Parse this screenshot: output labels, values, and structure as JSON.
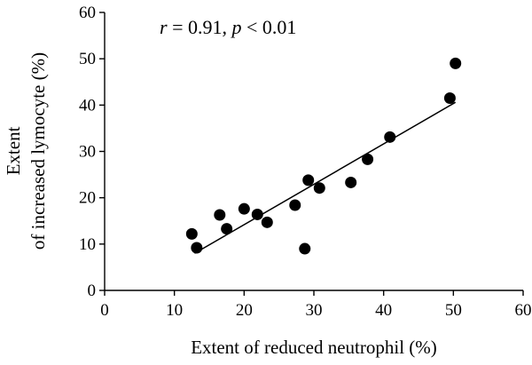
{
  "chart_data": {
    "type": "scatter",
    "title": "",
    "xlabel": "Extent of reduced neutrophil (%)",
    "ylabel_lines": [
      "Extent",
      "of increased lymocyte (%)"
    ],
    "xlim": [
      0,
      60
    ],
    "ylim": [
      0,
      60
    ],
    "xticks": [
      0,
      10,
      20,
      30,
      40,
      50,
      60
    ],
    "yticks": [
      0,
      10,
      20,
      30,
      40,
      50,
      60
    ],
    "grid": false,
    "annotation": {
      "r_symbol": "r",
      "r_value": " = 0.91, ",
      "p_symbol": "p",
      "p_value": " < 0.01"
    },
    "points": [
      {
        "x": 12.5,
        "y": 12.2
      },
      {
        "x": 13.2,
        "y": 9.2
      },
      {
        "x": 16.5,
        "y": 16.3
      },
      {
        "x": 17.5,
        "y": 13.3
      },
      {
        "x": 20.0,
        "y": 17.6
      },
      {
        "x": 21.9,
        "y": 16.4
      },
      {
        "x": 23.3,
        "y": 14.7
      },
      {
        "x": 27.3,
        "y": 18.4
      },
      {
        "x": 28.7,
        "y": 9.0
      },
      {
        "x": 29.2,
        "y": 23.8
      },
      {
        "x": 30.8,
        "y": 22.1
      },
      {
        "x": 35.3,
        "y": 23.3
      },
      {
        "x": 37.7,
        "y": 28.3
      },
      {
        "x": 40.9,
        "y": 33.1
      },
      {
        "x": 49.5,
        "y": 41.5
      },
      {
        "x": 50.3,
        "y": 49.0
      }
    ],
    "fit_line": {
      "x": [
        12.9,
        50.3
      ],
      "y": [
        8.0,
        40.6
      ]
    },
    "marker_color": "#000000"
  }
}
